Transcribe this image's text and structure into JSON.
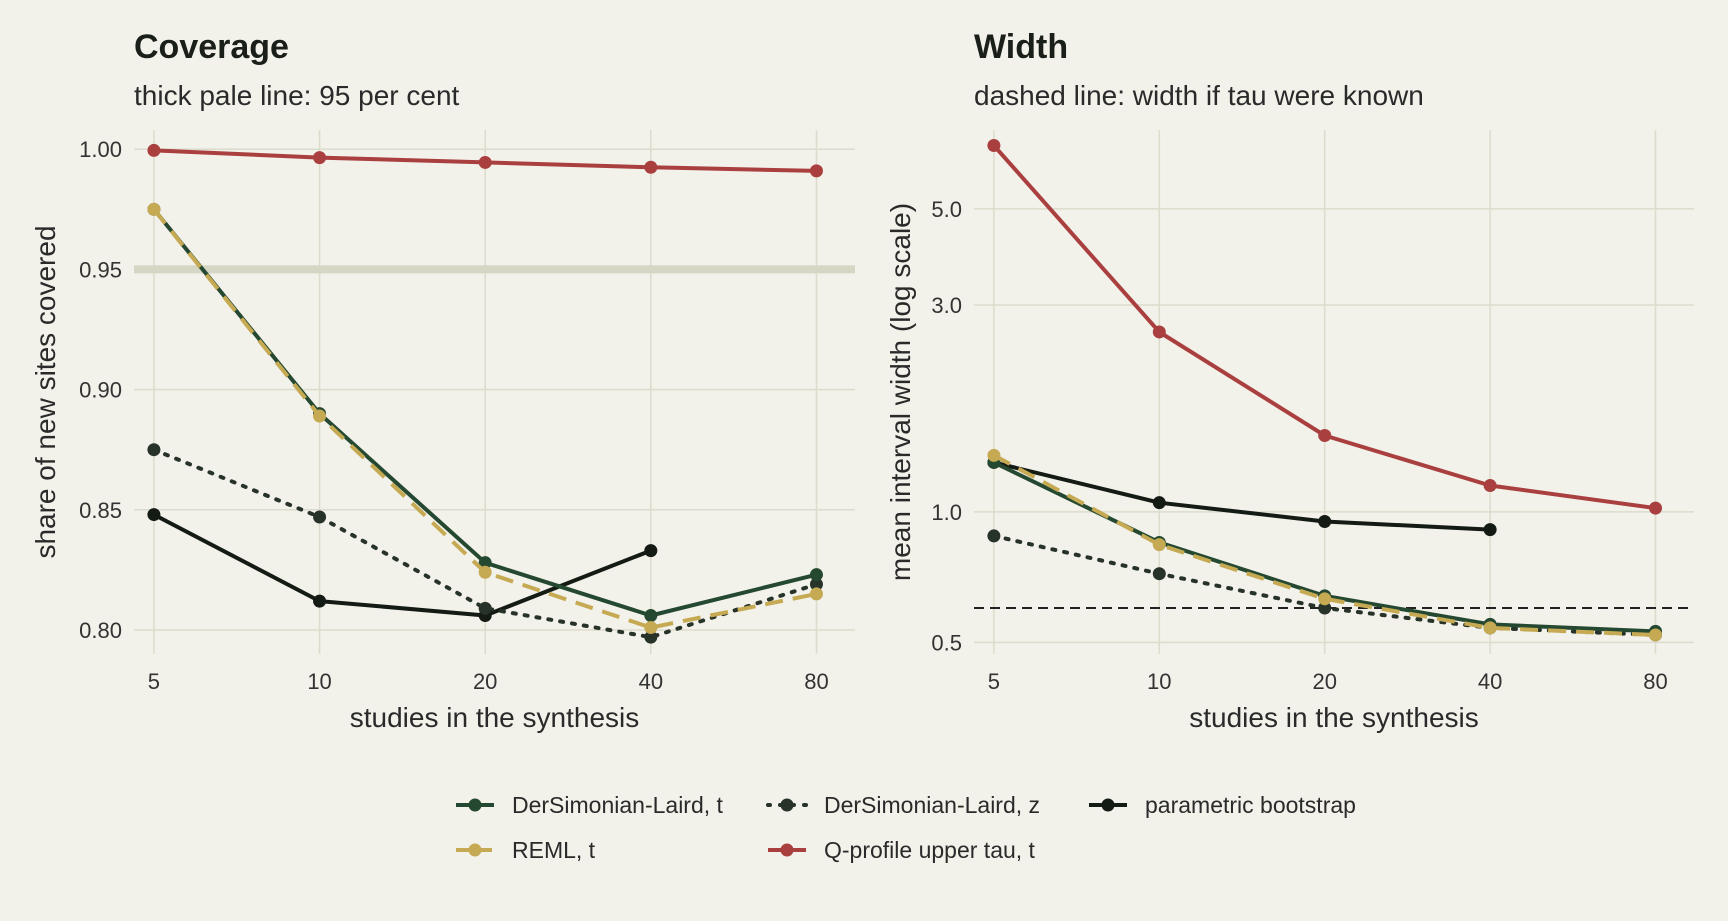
{
  "chart_data": [
    {
      "type": "line",
      "title": "Coverage",
      "subtitle": "thick pale line: 95 per cent",
      "xlabel": "studies in the synthesis",
      "ylabel": "share of new sites covered",
      "x": [
        5,
        10,
        20,
        40,
        80
      ],
      "x_scale": "log",
      "xlim": [
        4.6,
        94
      ],
      "ylim": [
        0.79,
        1.008
      ],
      "y_ticks": [
        0.8,
        0.85,
        0.9,
        0.95,
        1.0
      ],
      "y_tick_labels": [
        "0.80",
        "0.85",
        "0.90",
        "0.95",
        "1.00"
      ],
      "x_tick_labels": [
        "5",
        "10",
        "20",
        "40",
        "80"
      ],
      "reference_line": {
        "y": 0.95,
        "style": "thick pale"
      },
      "grid": true,
      "series": [
        {
          "name": "DerSimonian-Laird, t",
          "values": [
            0.975,
            0.89,
            0.828,
            0.806,
            0.823
          ]
        },
        {
          "name": "DerSimonian-Laird, z",
          "values": [
            0.875,
            0.847,
            0.809,
            0.797,
            0.819
          ]
        },
        {
          "name": "parametric bootstrap",
          "values": [
            0.848,
            0.812,
            0.806,
            0.833,
            null
          ]
        },
        {
          "name": "REML, t",
          "values": [
            0.975,
            0.889,
            0.824,
            0.801,
            0.815
          ]
        },
        {
          "name": "Q-profile upper tau, t",
          "values": [
            0.9995,
            0.9965,
            0.9945,
            0.9925,
            0.991
          ]
        }
      ]
    },
    {
      "type": "line",
      "title": "Width",
      "subtitle": "dashed line: width if tau were known",
      "xlabel": "studies in the synthesis",
      "ylabel": "mean interval width (log scale)",
      "x": [
        5,
        10,
        20,
        40,
        80
      ],
      "x_scale": "log",
      "y_scale": "log",
      "xlim": [
        4.6,
        94
      ],
      "ylim": [
        0.47,
        7.6
      ],
      "y_ticks": [
        0.5,
        1.0,
        3.0,
        5.0
      ],
      "y_tick_labels": [
        "0.5",
        "1.0",
        "3.0",
        "5.0"
      ],
      "x_tick_labels": [
        "5",
        "10",
        "20",
        "40",
        "80"
      ],
      "reference_line": {
        "y": 0.6,
        "style": "dashed"
      },
      "grid": true,
      "series": [
        {
          "name": "DerSimonian-Laird, t",
          "values": [
            1.3,
            0.85,
            0.64,
            0.55,
            0.53
          ]
        },
        {
          "name": "DerSimonian-Laird, z",
          "values": [
            0.88,
            0.72,
            0.6,
            0.54,
            0.52
          ]
        },
        {
          "name": "parametric bootstrap",
          "values": [
            1.3,
            1.05,
            0.95,
            0.91,
            null
          ]
        },
        {
          "name": "REML, t",
          "values": [
            1.35,
            0.84,
            0.63,
            0.54,
            0.52
          ]
        },
        {
          "name": "Q-profile upper tau, t",
          "values": [
            7.0,
            2.6,
            1.5,
            1.15,
            1.02
          ]
        }
      ]
    }
  ],
  "legend": {
    "position": "bottom",
    "items": [
      {
        "label": "DerSimonian-Laird, t",
        "color": "#244830",
        "dash": "solid"
      },
      {
        "label": "DerSimonian-Laird, z",
        "color": "#273228",
        "dash": "dotted"
      },
      {
        "label": "parametric bootstrap",
        "color": "#141a14",
        "dash": "solid"
      },
      {
        "label": "REML, t",
        "color": "#c6aa53",
        "dash": "dashed"
      },
      {
        "label": "Q-profile upper tau, t",
        "color": "#a9403f",
        "dash": "solid"
      }
    ]
  },
  "colors": {
    "background": "#f2f1ea",
    "grid": "#dcdccd",
    "coverage_reference": "#d5d6c3",
    "width_reference": "#222222"
  }
}
